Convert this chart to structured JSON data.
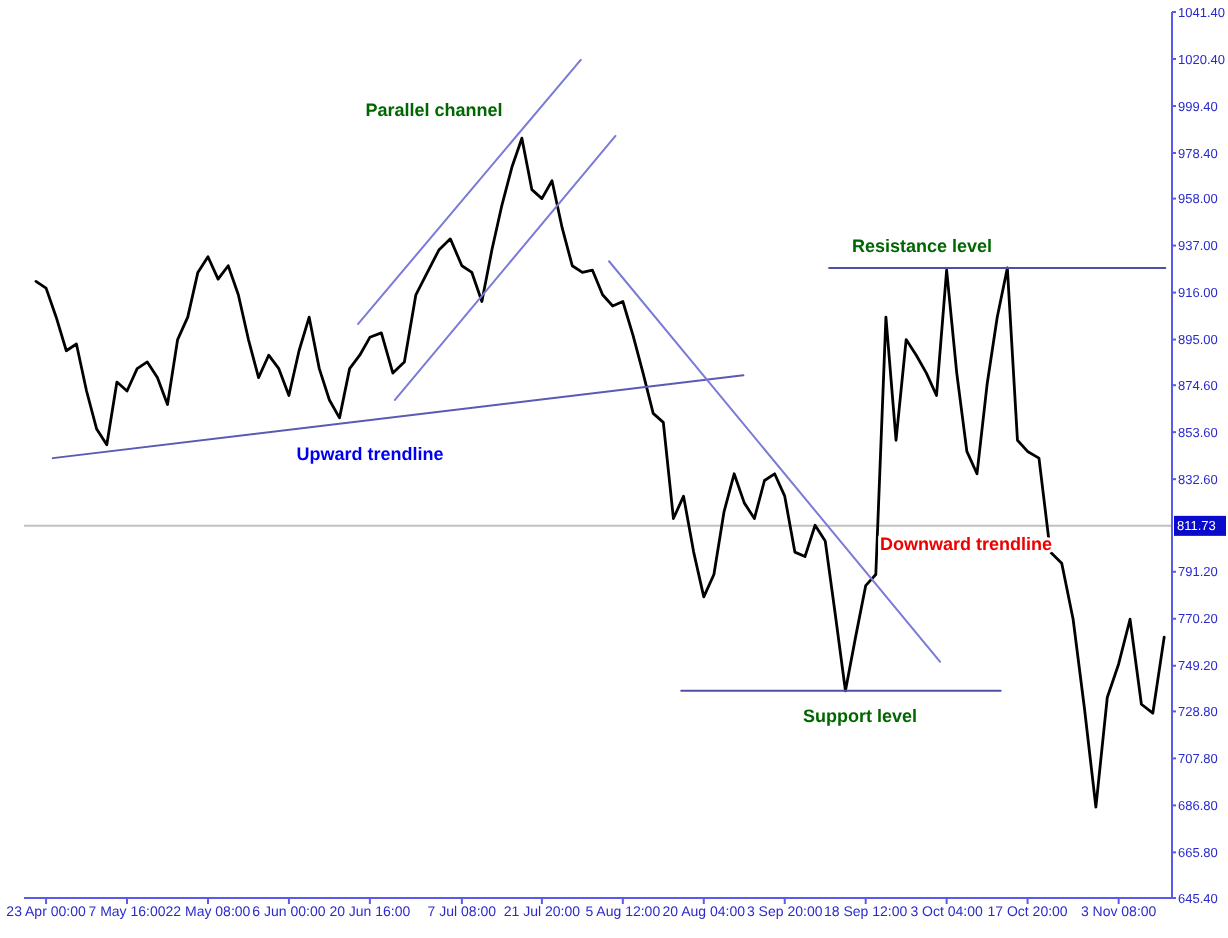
{
  "chart_data": {
    "type": "line",
    "xlim": [
      "--04-19T00:00",
      "--11-13T00:00"
    ],
    "xticks": [
      {
        "value": "--04-23T00:00",
        "label": "23 Apr 00:00"
      },
      {
        "value": "--05-07T16:00",
        "label": "7 May 16:00"
      },
      {
        "value": "--05-22T08:00",
        "label": "22 May 08:00"
      },
      {
        "value": "--06-06T00:00",
        "label": "6 Jun 00:00"
      },
      {
        "value": "--06-20T16:00",
        "label": "20 Jun 16:00"
      },
      {
        "value": "--07-07T08:00",
        "label": "7 Jul 08:00"
      },
      {
        "value": "--07-21T20:00",
        "label": "21 Jul 20:00"
      },
      {
        "value": "--08-05T12:00",
        "label": "5 Aug 12:00"
      },
      {
        "value": "--08-20T04:00",
        "label": "20 Aug 04:00"
      },
      {
        "value": "--09-03T20:00",
        "label": "3 Sep 20:00"
      },
      {
        "value": "--09-18T12:00",
        "label": "18 Sep 12:00"
      },
      {
        "value": "--10-03T04:00",
        "label": "3 Oct 04:00"
      },
      {
        "value": "--10-17T20:00",
        "label": "17 Oct 20:00"
      },
      {
        "value": "--11-03T08:00",
        "label": "3 Nov 08:00"
      }
    ],
    "ylim": [
      645.4,
      1041.4
    ],
    "yticks": [
      {
        "value": 645.4,
        "label": "645.40"
      },
      {
        "value": 665.8,
        "label": "665.80"
      },
      {
        "value": 686.8,
        "label": "686.80"
      },
      {
        "value": 707.8,
        "label": "707.80"
      },
      {
        "value": 728.8,
        "label": "728.80"
      },
      {
        "value": 749.2,
        "label": "749.20"
      },
      {
        "value": 770.2,
        "label": "770.20"
      },
      {
        "value": 791.2,
        "label": "791.20"
      },
      {
        "value": 832.6,
        "label": "832.60"
      },
      {
        "value": 853.6,
        "label": "853.60"
      },
      {
        "value": 874.6,
        "label": "874.60"
      },
      {
        "value": 895,
        "label": "895.00"
      },
      {
        "value": 916,
        "label": "916.00"
      },
      {
        "value": 937,
        "label": "937.00"
      },
      {
        "value": 958,
        "label": "958.00"
      },
      {
        "value": 978.4,
        "label": "978.40"
      },
      {
        "value": 999.4,
        "label": "999.40"
      },
      {
        "value": 1020.4,
        "label": "1020.40"
      },
      {
        "value": 1041.4,
        "label": "1041.40"
      }
    ],
    "ref_lines": [
      {
        "axis": "y",
        "value": 811.73,
        "label": "811.73",
        "color": "#c0c0c0"
      }
    ],
    "series": [
      {
        "color": "#000000",
        "x": [
          "--04-21T04:00",
          "--04-23T00:00",
          "--04-24T20:00",
          "--04-26T16:00",
          "--04-28T12:00",
          "--04-30T08:00",
          "--05-02T04:00",
          "--05-04T00:00",
          "--05-05T20:00",
          "--05-07T16:00",
          "--05-09T12:00",
          "--05-11T08:00",
          "--05-13T04:00",
          "--05-15T00:00",
          "--05-16T20:00",
          "--05-18T16:00",
          "--05-20T12:00",
          "--05-22T08:00",
          "--05-24T04:00",
          "--05-26T00:00",
          "--05-27T20:00",
          "--05-29T16:00",
          "--05-31T12:00",
          "--06-02T08:00",
          "--06-04T04:00",
          "--06-06T00:00",
          "--06-07T20:00",
          "--06-09T16:00",
          "--06-11T12:00",
          "--06-13T08:00",
          "--06-15T04:00",
          "--06-17T00:00",
          "--06-18T20:00",
          "--06-20T16:00",
          "--06-22T18:00",
          "--06-24T20:00",
          "--06-26T22:00",
          "--06-29T00:00",
          "--07-01T02:00",
          "--07-03T04:00",
          "--07-05T06:00",
          "--07-07T08:00",
          "--07-09T03:30",
          "--07-10T23:00",
          "--07-12T18:30",
          "--07-14T14:00",
          "--07-16T09:30",
          "--07-18T05:00",
          "--07-20T00:30",
          "--07-21T20:00",
          "--07-23T16:00",
          "--07-25T12:00",
          "--07-27T08:00",
          "--07-29T04:00",
          "--07-31T00:00",
          "--08-01T20:00",
          "--08-03T16:00",
          "--08-05T12:00",
          "--08-07T08:00",
          "--08-09T04:00",
          "--08-11T00:00",
          "--08-12T20:00",
          "--08-14T16:00",
          "--08-16T12:00",
          "--08-18T08:00",
          "--08-20T04:00",
          "--08-22T00:00",
          "--08-23T20:00",
          "--08-25T16:00",
          "--08-27T12:00",
          "--08-29T08:00",
          "--08-31T04:00",
          "--09-02T00:00",
          "--09-03T20:00",
          "--09-05T16:00",
          "--09-07T12:00",
          "--09-09T08:00",
          "--09-11T04:00",
          "--09-13T00:00",
          "--09-14T20:00",
          "--09-16T16:00",
          "--09-18T12:00",
          "--09-20T08:00",
          "--09-22T04:00",
          "--09-24T00:00",
          "--09-25T20:00",
          "--09-27T16:00",
          "--09-29T12:00",
          "--10-01T08:00",
          "--10-03T04:00",
          "--10-05T00:00",
          "--10-06T20:00",
          "--10-08T16:00",
          "--10-10T12:00",
          "--10-12T08:00",
          "--10-14T04:00",
          "--10-16T00:00",
          "--10-17T20:00",
          "--10-19T21:30",
          "--10-21T23:00",
          "--10-24T00:30",
          "--10-26T02:00",
          "--10-28T03:30",
          "--10-30T05:00",
          "--11-01T06:30",
          "--11-03T08:00",
          "--11-05T09:30",
          "--11-07T11:00",
          "--11-09T12:30",
          "--11-11T14:00"
        ],
        "values": [
          921,
          918,
          905,
          890,
          893,
          872,
          855,
          848,
          876,
          872,
          882,
          885,
          878,
          866,
          895,
          905,
          925,
          932,
          922,
          928,
          915,
          895,
          878,
          888,
          882,
          870,
          890,
          905,
          882,
          868,
          860,
          882,
          888,
          896,
          898,
          880,
          885,
          915,
          925,
          935,
          940,
          928,
          925,
          912,
          935,
          955,
          972,
          985,
          962,
          958,
          966,
          945,
          928,
          925,
          926,
          915,
          910,
          912,
          897,
          880,
          862,
          858,
          815,
          825,
          800,
          780,
          790,
          818,
          835,
          822,
          815,
          832,
          835,
          825,
          800,
          798,
          812,
          805,
          772,
          738,
          762,
          785,
          790,
          905,
          850,
          895,
          888,
          880,
          870,
          926,
          880,
          845,
          835,
          875,
          905,
          927,
          850,
          845,
          842,
          800,
          795,
          770,
          730,
          686,
          735,
          750,
          770,
          732,
          728,
          762
        ]
      },
      {
        "color": "#5a5ab4",
        "x": [
          "--04-24T05:00",
          "--08-27T08:00"
        ],
        "values": [
          842,
          879
        ]
      },
      {
        "color": "#7a7ad8",
        "x": [
          "--06-18T13:00",
          "--07-28T21:00"
        ],
        "values": [
          902,
          1020
        ]
      },
      {
        "color": "#7a7ad8",
        "x": [
          "--06-25T05:00",
          "--08-04T04:00"
        ],
        "values": [
          868,
          986
        ]
      },
      {
        "color": "#7a7ad8",
        "x": [
          "--08-03T00:00",
          "--10-01T23:00"
        ],
        "values": [
          930,
          751
        ]
      },
      {
        "color": "#4f4fa6",
        "x": [
          "--08-16T02:00",
          "--10-12T23:00"
        ],
        "values": [
          738,
          738
        ]
      },
      {
        "color": "#4f4fa6",
        "x": [
          "--09-11T21:00",
          "--11-11T19:00"
        ],
        "values": [
          927,
          927
        ]
      }
    ],
    "annotations": [
      "Parallel channel",
      "Upward trendline",
      "Resistance level",
      "Downward trendline",
      "Support level"
    ]
  }
}
